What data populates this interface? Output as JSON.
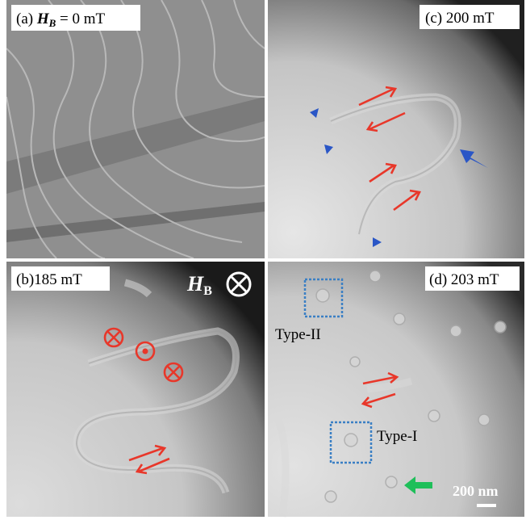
{
  "panels": [
    {
      "label": {
        "prefix": "(a) ",
        "symbol": "H",
        "subscript": "B",
        "suffix": " = 0 mT"
      }
    },
    {
      "label": "(c) 200 mT"
    },
    {
      "label": "(b)185 mT",
      "field": {
        "symbol": "H",
        "subscript": "B"
      }
    },
    {
      "label": "(d) 203 mT",
      "annotations": [
        "Type-II",
        "Type-I"
      ],
      "scale_bar": "200 nm"
    }
  ]
}
